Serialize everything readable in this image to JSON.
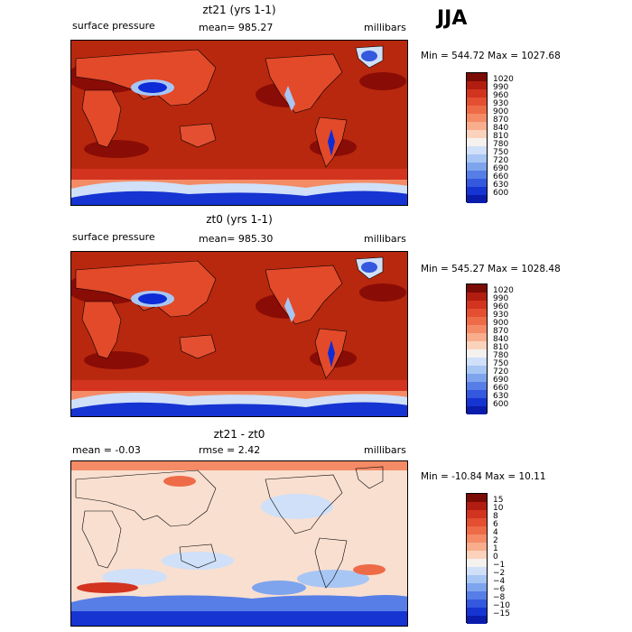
{
  "season": "JJA",
  "colors": {
    "ocean_high": "#b8280e",
    "land_med": "#e24a2a",
    "land_light": "#f6a07a",
    "high_dark": "#8a0c06",
    "blue_dark": "#0d2bd6",
    "blue_light": "#a8c6f4",
    "diff_bg": "#f9dfd0"
  },
  "panels": [
    {
      "title": "zt21 (yrs 1-1)",
      "left_label": "surface pressure",
      "mean_label": "mean= 985.27",
      "rmse_label": "",
      "units": "millibars",
      "minmax": "Min = 544.72 Max = 1027.68",
      "colorbar": {
        "labels": [
          "1020",
          "990",
          "960",
          "930",
          "900",
          "870",
          "840",
          "810",
          "780",
          "750",
          "720",
          "690",
          "660",
          "630",
          "600"
        ],
        "colors": [
          "#7a0b05",
          "#b11d10",
          "#d23420",
          "#e34f30",
          "#ee6b47",
          "#f48b66",
          "#f8ad8d",
          "#fbd3bd",
          "#f4f1ef",
          "#cfe0f8",
          "#a8c6f4",
          "#7ea4ee",
          "#567ee6",
          "#3458de",
          "#1634d2",
          "#0a1cab"
        ]
      }
    },
    {
      "title": "zt0 (yrs 1-1)",
      "left_label": "surface pressure",
      "mean_label": "mean= 985.30",
      "rmse_label": "",
      "units": "millibars",
      "minmax": "Min = 545.27 Max = 1028.48",
      "colorbar": {
        "labels": [
          "1020",
          "990",
          "960",
          "930",
          "900",
          "870",
          "840",
          "810",
          "780",
          "750",
          "720",
          "690",
          "660",
          "630",
          "600"
        ],
        "colors": [
          "#7a0b05",
          "#b11d10",
          "#d23420",
          "#e34f30",
          "#ee6b47",
          "#f48b66",
          "#f8ad8d",
          "#fbd3bd",
          "#f4f1ef",
          "#cfe0f8",
          "#a8c6f4",
          "#7ea4ee",
          "#567ee6",
          "#3458de",
          "#1634d2",
          "#0a1cab"
        ]
      }
    },
    {
      "title": "zt21 - zt0",
      "left_label": "mean =   -0.03",
      "mean_label": "rmse =    2.42",
      "rmse_label": "",
      "units": "millibars",
      "minmax": "Min = -10.84 Max =  10.11",
      "colorbar": {
        "labels": [
          "15",
          "10",
          "8",
          "6",
          "4",
          "2",
          "1",
          "0",
          "−1",
          "−2",
          "−4",
          "−6",
          "−8",
          "−10",
          "−15"
        ],
        "colors": [
          "#7a0b05",
          "#b11d10",
          "#d23420",
          "#e34f30",
          "#ee6b47",
          "#f48b66",
          "#f8ad8d",
          "#fbd3bd",
          "#f4f1ef",
          "#cfe0f8",
          "#a8c6f4",
          "#7ea4ee",
          "#567ee6",
          "#3458de",
          "#1634d2",
          "#0a1cab"
        ]
      }
    }
  ]
}
